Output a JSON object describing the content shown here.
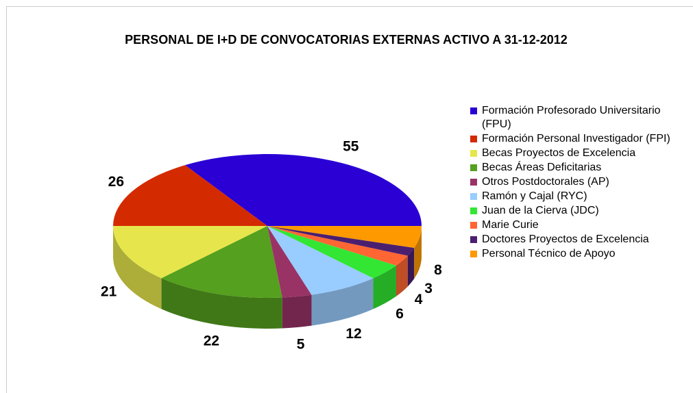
{
  "chart_data": {
    "type": "pie3d",
    "title": "PERSONAL DE I+D DE CONVOCATORIAS EXTERNAS ACTIVO A 31-12-2012",
    "series": [
      {
        "name": "Formación Profesorado Universitario (FPU)",
        "color": "#2a00d4",
        "values": [
          55
        ]
      },
      {
        "name": "Formación Personal Investigador (FPI)",
        "color": "#d42a00",
        "values": [
          26
        ]
      },
      {
        "name": "Becas Proyectos de Excelencia",
        "color": "#e6e64c",
        "values": [
          21
        ]
      },
      {
        "name": "Becas Áreas Deficitarias",
        "color": "#55a01e",
        "values": [
          22
        ]
      },
      {
        "name": "Otros Postdoctorales (AP)",
        "color": "#993366",
        "values": [
          5
        ]
      },
      {
        "name": "Ramón y Cajal (RYC)",
        "color": "#99ccff",
        "values": [
          12
        ]
      },
      {
        "name": "Juan de la Cierva (JDC)",
        "color": "#33e633",
        "values": [
          6
        ]
      },
      {
        "name": "Marie Curie",
        "color": "#ff6633",
        "values": [
          4
        ]
      },
      {
        "name": "Doctores Proyectos de Excelencia",
        "color": "#4b1f6f",
        "values": [
          3
        ]
      },
      {
        "name": "Personal Técnico de Apoyo",
        "color": "#ff9900",
        "values": [
          8
        ]
      }
    ]
  }
}
